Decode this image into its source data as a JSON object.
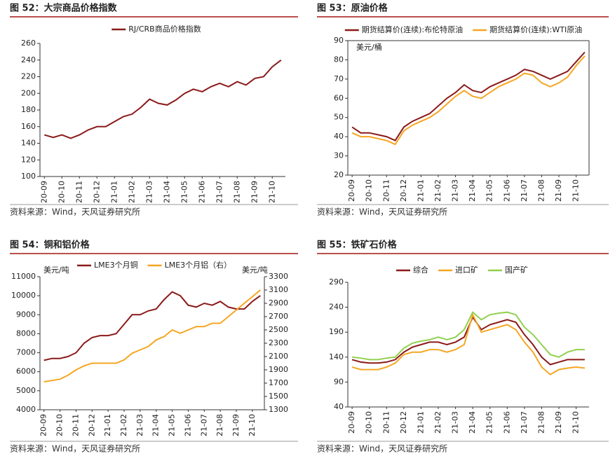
{
  "chart_data": [
    {
      "type": "line",
      "title": "图 52：大宗商品价格指数",
      "source": "资料来源：Wind，天风证券研究所",
      "categories": [
        "20-09",
        null,
        "20-10",
        null,
        "20-11",
        null,
        "20-12",
        null,
        "21-01",
        null,
        "21-02",
        null,
        "21-03",
        null,
        "21-04",
        null,
        "21-05",
        null,
        "21-06",
        null,
        "21-07",
        null,
        "21-08",
        null,
        "21-09",
        null,
        "21-10",
        null
      ],
      "series": [
        {
          "name": "RJ/CRB商品价格指数",
          "color": "#8b1a1a",
          "values": [
            150,
            147,
            150,
            146,
            150,
            156,
            160,
            160,
            166,
            172,
            175,
            183,
            193,
            188,
            186,
            192,
            200,
            205,
            202,
            208,
            212,
            208,
            214,
            210,
            218,
            220,
            232,
            240
          ]
        }
      ],
      "ylim": [
        100,
        260
      ],
      "yticks": [
        100,
        120,
        140,
        160,
        180,
        200,
        220,
        240,
        260
      ]
    },
    {
      "type": "line",
      "title": "图 53：原油价格",
      "source": "资料来源：Wind，天风证券研究所",
      "ylabel": "美元/桶",
      "categories": [
        "20-09",
        null,
        "20-10",
        null,
        "20-11",
        null,
        "20-12",
        null,
        "21-01",
        null,
        "21-02",
        null,
        "21-03",
        null,
        "21-04",
        null,
        "21-05",
        null,
        "21-06",
        null,
        "21-07",
        null,
        "21-08",
        null,
        "21-09",
        null,
        "21-10",
        null
      ],
      "series": [
        {
          "name": "期货结算价(连续):布伦特原油",
          "color": "#8b1a1a",
          "values": [
            45,
            42,
            42,
            41,
            40,
            38,
            45,
            48,
            50,
            52,
            56,
            60,
            63,
            67,
            64,
            63,
            66,
            68,
            70,
            72,
            75,
            74,
            72,
            70,
            72,
            74,
            79,
            84
          ]
        },
        {
          "name": "期货结算价(连续):WTI原油",
          "color": "#f5a623",
          "values": [
            42,
            40,
            40,
            39,
            38,
            36,
            43,
            46,
            48,
            50,
            53,
            57,
            61,
            64,
            61,
            60,
            63,
            66,
            68,
            70,
            73,
            72,
            68,
            66,
            68,
            71,
            77,
            82
          ]
        }
      ],
      "ylim": [
        20,
        90
      ],
      "yticks": [
        20,
        30,
        40,
        50,
        60,
        70,
        80,
        90
      ]
    },
    {
      "type": "line",
      "title": "图 54：铜和铝价格",
      "source": "资料来源：Wind，天风证券研究所",
      "ylabel": "美元/吨",
      "y2label": "美元/吨",
      "categories": [
        "20-09",
        null,
        "20-10",
        null,
        "20-11",
        null,
        "20-12",
        null,
        "21-01",
        null,
        "21-02",
        null,
        "21-03",
        null,
        "21-04",
        null,
        "21-05",
        null,
        "21-06",
        null,
        "21-07",
        null,
        "21-08",
        null,
        "21-09",
        null,
        "21-10",
        null
      ],
      "series": [
        {
          "name": "LME3个月铜",
          "color": "#8b1a1a",
          "values": [
            6600,
            6700,
            6700,
            6800,
            7000,
            7500,
            7800,
            7900,
            7900,
            8000,
            8500,
            9000,
            9000,
            9200,
            9300,
            9800,
            10200,
            10000,
            9500,
            9400,
            9600,
            9500,
            9700,
            9400,
            9300,
            9300,
            9700,
            10000
          ]
        },
        {
          "name": "LME3个月铝（右）",
          "color": "#f5a623",
          "axis": "y2",
          "values": [
            1720,
            1740,
            1760,
            1820,
            1900,
            1960,
            2000,
            2000,
            2000,
            2000,
            2050,
            2150,
            2200,
            2250,
            2350,
            2400,
            2500,
            2450,
            2500,
            2550,
            2550,
            2600,
            2600,
            2700,
            2800,
            2900,
            3000,
            3100
          ]
        }
      ],
      "ylim": [
        4000,
        11000
      ],
      "yticks": [
        4000,
        5000,
        6000,
        7000,
        8000,
        9000,
        10000,
        11000
      ],
      "y2lim": [
        1300,
        3300
      ],
      "y2ticks": [
        1300,
        1500,
        1700,
        1900,
        2100,
        2300,
        2500,
        2700,
        2900,
        3100,
        3300
      ]
    },
    {
      "type": "line",
      "title": "图 55：铁矿石价格",
      "source": "资料来源：Wind，天风证券研究所",
      "categories": [
        "20-09",
        null,
        "20-10",
        null,
        "20-11",
        null,
        "20-12",
        null,
        "21-01",
        null,
        "21-02",
        null,
        "21-03",
        null,
        "21-04",
        null,
        "21-05",
        null,
        "21-06",
        null,
        "21-07",
        null,
        "21-08",
        null,
        "21-09",
        null,
        "21-10",
        null
      ],
      "series": [
        {
          "name": "综合",
          "color": "#8b1a1a",
          "values": [
            135,
            130,
            128,
            128,
            130,
            135,
            150,
            160,
            165,
            170,
            170,
            165,
            170,
            180,
            220,
            195,
            205,
            210,
            215,
            210,
            185,
            165,
            140,
            125,
            130,
            135,
            135,
            135
          ]
        },
        {
          "name": "进口矿",
          "color": "#f5a623",
          "values": [
            120,
            115,
            115,
            115,
            120,
            128,
            145,
            150,
            150,
            155,
            155,
            150,
            155,
            165,
            225,
            190,
            195,
            200,
            205,
            195,
            170,
            150,
            120,
            105,
            115,
            118,
            120,
            118
          ]
        },
        {
          "name": "国产矿",
          "color": "#92d050",
          "values": [
            140,
            138,
            135,
            135,
            138,
            140,
            158,
            168,
            172,
            175,
            180,
            175,
            180,
            195,
            230,
            215,
            225,
            228,
            230,
            225,
            200,
            185,
            165,
            145,
            140,
            150,
            155,
            155
          ]
        }
      ],
      "ylim": [
        40,
        290
      ],
      "yticks": [
        40,
        90,
        140,
        190,
        240,
        290
      ]
    }
  ]
}
